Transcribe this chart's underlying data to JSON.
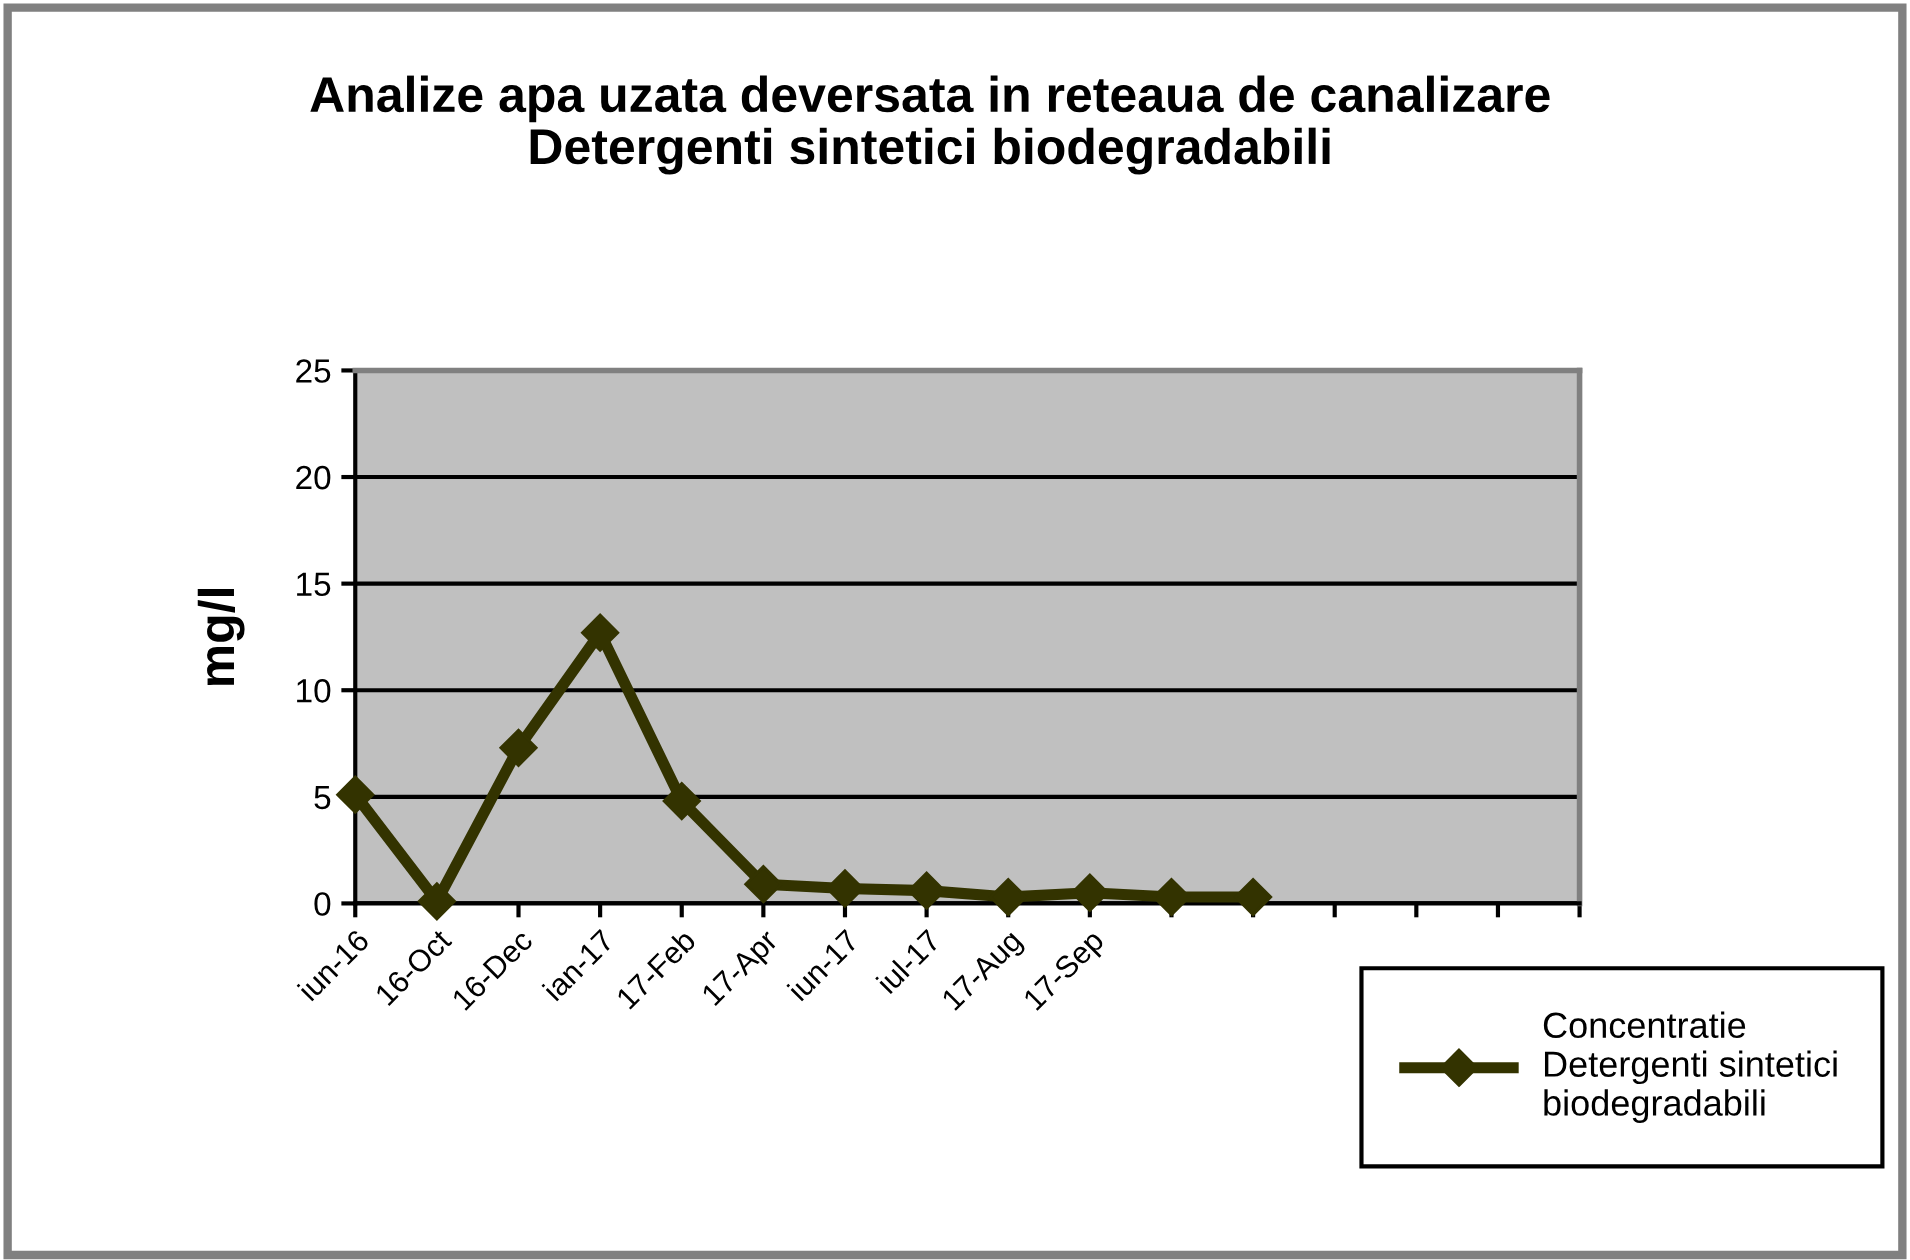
{
  "chart_data": {
    "type": "line",
    "title": "Analize apa uzata deversata in reteaua de canalizare\nDetergenti sintetici biodegradabili",
    "ylabel": "mg/l",
    "categories": [
      "iun-16",
      "16-Oct",
      "16-Dec",
      "ian-17",
      "17-Feb",
      "17-Apr",
      "iun-17",
      "iul-17",
      "17-Aug",
      "17-Sep",
      null,
      null,
      null,
      null,
      null,
      null
    ],
    "series": [
      {
        "name": "Concentratie\nDetergenti sintetici\nbiodegradabili",
        "color": "#333300",
        "values": [
          5.1,
          0.1,
          7.3,
          12.7,
          4.8,
          0.9,
          0.7,
          0.6,
          0.3,
          0.5,
          0.3,
          0.3,
          null,
          null,
          null,
          null
        ]
      }
    ],
    "ylim": [
      0,
      25
    ],
    "yticks": [
      0,
      5,
      10,
      15,
      20,
      25
    ],
    "grid": "y",
    "legend": "bottom right",
    "marker": "diamond",
    "line_style": "solid"
  }
}
